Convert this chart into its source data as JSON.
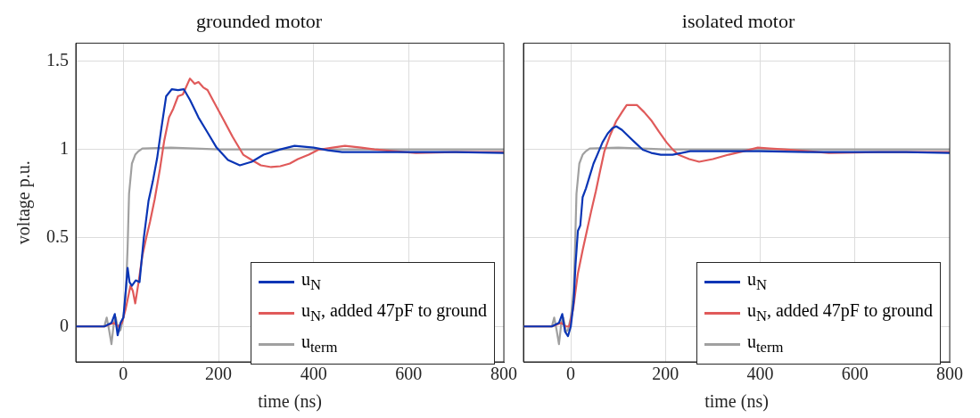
{
  "chart_data": [
    {
      "type": "line",
      "title": "grounded motor",
      "xlabel": "time (ns)",
      "ylabel": "voltage p.u.",
      "xlim": [
        -100,
        800
      ],
      "xticks": [
        0,
        200,
        400,
        600,
        800
      ],
      "ylim": [
        -0.2,
        1.6
      ],
      "yticks": [
        0,
        0.5,
        1,
        1.5
      ],
      "grid": true,
      "legend": "bottom right",
      "marker": "none",
      "line_style": "solid",
      "series": [
        {
          "name": "u$_{N}$",
          "color": "#0a35b5",
          "x": [
            -100,
            -40,
            -25,
            -18,
            -12,
            -6,
            0,
            5,
            9,
            13,
            18,
            26,
            34,
            43,
            53,
            62,
            71,
            80,
            90,
            102,
            115,
            127,
            140,
            158,
            176,
            196,
            220,
            245,
            270,
            295,
            330,
            360,
            400,
            430,
            460,
            530,
            600,
            700,
            800
          ],
          "values": [
            0,
            0,
            0.02,
            0.07,
            -0.05,
            0.02,
            0.05,
            0.2,
            0.33,
            0.25,
            0.23,
            0.26,
            0.25,
            0.5,
            0.71,
            0.82,
            0.95,
            1.12,
            1.3,
            1.34,
            1.335,
            1.34,
            1.28,
            1.18,
            1.1,
            1.01,
            0.94,
            0.91,
            0.93,
            0.97,
            1,
            1.02,
            1.01,
            0.995,
            0.985,
            0.985,
            0.985,
            0.985,
            0.98
          ]
        },
        {
          "name": "u$_{N}$, added 47pF to ground",
          "color": "#e05a5a",
          "x": [
            -100,
            -40,
            -20,
            -10,
            -3,
            5,
            15,
            20,
            25,
            32,
            40,
            48,
            56,
            66,
            77,
            86,
            96,
            105,
            115,
            125,
            140,
            150,
            158,
            168,
            177,
            190,
            208,
            230,
            252,
            270,
            289,
            311,
            330,
            350,
            367,
            390,
            410,
            440,
            466,
            500,
            528,
            570,
            615,
            700,
            800
          ],
          "values": [
            0,
            0,
            0.02,
            0,
            0.02,
            0.1,
            0.23,
            0.2,
            0.13,
            0.25,
            0.4,
            0.5,
            0.59,
            0.72,
            0.89,
            1.05,
            1.18,
            1.23,
            1.3,
            1.31,
            1.4,
            1.37,
            1.38,
            1.35,
            1.335,
            1.27,
            1.18,
            1.07,
            0.97,
            0.94,
            0.91,
            0.9,
            0.905,
            0.92,
            0.945,
            0.97,
            0.998,
            1.01,
            1.02,
            1.01,
            1,
            0.99,
            0.98,
            0.985,
            0.985
          ]
        },
        {
          "name": "u$_{term}$",
          "color": "#a0a0a0",
          "x": [
            -100,
            -40,
            -35,
            -30,
            -25,
            -20,
            -16,
            -10,
            -6,
            0,
            3,
            6,
            9,
            12,
            18,
            25,
            32,
            40,
            100,
            200,
            400,
            600,
            800
          ],
          "values": [
            0,
            0,
            0.05,
            -0.02,
            -0.1,
            0.02,
            0.05,
            -0.03,
            -0.02,
            0.05,
            0.12,
            0.23,
            0.45,
            0.75,
            0.92,
            0.97,
            0.99,
            1.005,
            1.01,
            1,
            1,
            1,
            1
          ]
        }
      ]
    },
    {
      "type": "line",
      "title": "isolated motor",
      "xlabel": "time (ns)",
      "xlim": [
        -100,
        800
      ],
      "xticks": [
        0,
        200,
        400,
        600,
        800
      ],
      "ylim": [
        -0.2,
        1.6
      ],
      "yticks": [
        0,
        0.5,
        1,
        1.5
      ],
      "tick_labels": "x",
      "grid": true,
      "legend": "bottom right",
      "marker": "none",
      "line_style": "solid",
      "series": [
        {
          "name": "u$_{N}$",
          "color": "#0a35b5",
          "x": [
            -100,
            -40,
            -25,
            -18,
            -12,
            -6,
            0,
            6,
            10,
            15,
            20,
            25,
            32,
            40,
            48,
            56,
            67,
            78,
            88,
            96,
            108,
            121,
            135,
            152,
            170,
            190,
            215,
            252,
            300,
            400,
            500,
            600,
            700,
            800
          ],
          "values": [
            0,
            0,
            0.02,
            0.07,
            -0.03,
            -0.055,
            0,
            0.14,
            0.35,
            0.54,
            0.57,
            0.73,
            0.78,
            0.85,
            0.92,
            0.97,
            1.04,
            1.09,
            1.12,
            1.13,
            1.11,
            1.076,
            1.04,
            0.998,
            0.98,
            0.97,
            0.97,
            0.99,
            0.99,
            0.99,
            0.985,
            0.985,
            0.985,
            0.98
          ]
        },
        {
          "name": "u$_{N}$, added 47pF to ground",
          "color": "#e05a5a",
          "x": [
            -100,
            -40,
            -20,
            -10,
            -3,
            5,
            15,
            25,
            34,
            43,
            53,
            62,
            71,
            83,
            96,
            108,
            118,
            130,
            140,
            155,
            171,
            186,
            202,
            215,
            227,
            250,
            271,
            300,
            333,
            365,
            395,
            420,
            451,
            500,
            545,
            650,
            800
          ],
          "values": [
            0,
            0,
            0.02,
            0,
            0,
            0.1,
            0.3,
            0.43,
            0.54,
            0.65,
            0.765,
            0.88,
            0.99,
            1.08,
            1.16,
            1.21,
            1.25,
            1.25,
            1.25,
            1.21,
            1.16,
            1.1,
            1.04,
            1,
            0.97,
            0.945,
            0.93,
            0.945,
            0.97,
            0.99,
            1.01,
            1.005,
            1,
            0.99,
            0.98,
            0.985,
            0.985
          ]
        },
        {
          "name": "u$_{term}$",
          "color": "#a0a0a0",
          "x": [
            -100,
            -40,
            -35,
            -30,
            -25,
            -20,
            -16,
            -10,
            -6,
            0,
            3,
            6,
            9,
            12,
            18,
            25,
            32,
            40,
            100,
            200,
            400,
            600,
            800
          ],
          "values": [
            0,
            0,
            0.05,
            -0.02,
            -0.1,
            0.02,
            0.05,
            -0.03,
            -0.02,
            0.05,
            0.12,
            0.2,
            0.45,
            0.75,
            0.92,
            0.97,
            0.99,
            1.005,
            1.01,
            1,
            1,
            1,
            1
          ]
        }
      ]
    }
  ]
}
